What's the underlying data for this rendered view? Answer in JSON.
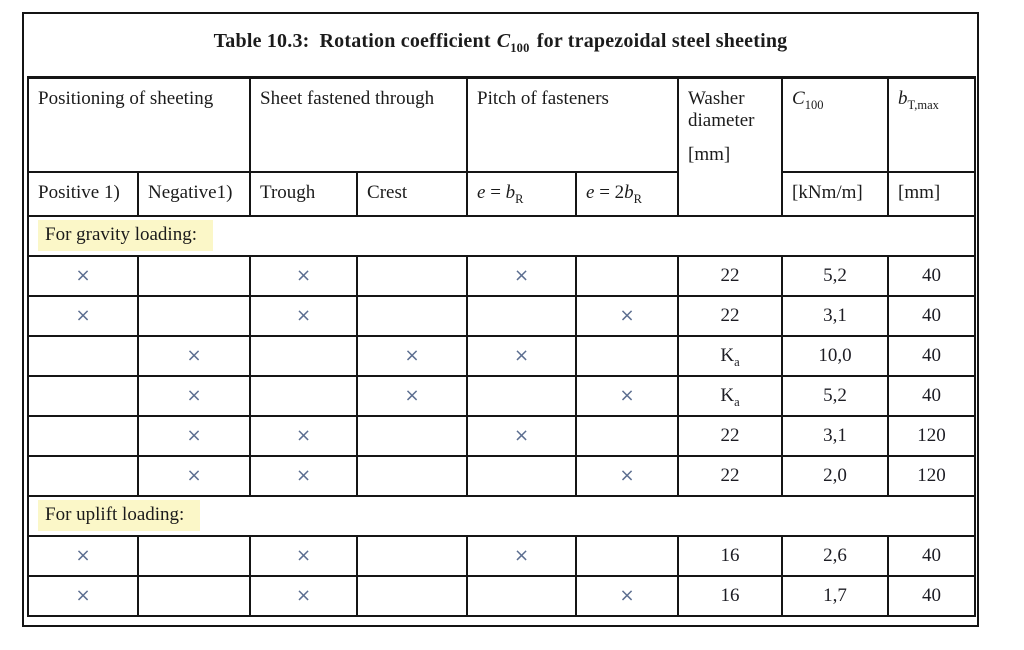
{
  "title": {
    "part1": "Table 10.3:",
    "part2": "Rotation coefficient",
    "symbol_base": "C",
    "symbol_sub": "100",
    "part3": "for trapezoidal steel sheeting"
  },
  "header": {
    "group_positioning": "Positioning of sheeting",
    "group_fastened": "Sheet fastened through",
    "group_pitch": "Pitch of fasteners",
    "washer_line1": "Washer",
    "washer_line2": "diameter",
    "washer_unit": "[mm]",
    "c100_base": "C",
    "c100_sub": "100",
    "c100_unit": "[kNm/m]",
    "btmax_base": "b",
    "btmax_sub": "T,max",
    "btmax_unit": "[mm]",
    "positive": "Positive 1)",
    "negative": "Negative1)",
    "trough": "Trough",
    "crest": "Crest",
    "pitch1": {
      "var": "e",
      "eq": " = ",
      "coef": "",
      "base": "b",
      "sub": "R"
    },
    "pitch2": {
      "var": "e",
      "eq": " = ",
      "coef": "2",
      "base": "b",
      "sub": "R"
    }
  },
  "table": {
    "mark_symbol": "×",
    "sections": [
      {
        "label": "For gravity loading:",
        "rows": [
          {
            "marks": [
              "×",
              "",
              "×",
              "",
              "×",
              ""
            ],
            "washer_base": "22",
            "washer_sub": "",
            "c100": "5,2",
            "btmax": "40"
          },
          {
            "marks": [
              "×",
              "",
              "×",
              "",
              "",
              "×"
            ],
            "washer_base": "22",
            "washer_sub": "",
            "c100": "3,1",
            "btmax": "40"
          },
          {
            "marks": [
              "",
              "×",
              "",
              "×",
              "×",
              ""
            ],
            "washer_base": "K",
            "washer_sub": "a",
            "c100": "10,0",
            "btmax": "40"
          },
          {
            "marks": [
              "",
              "×",
              "",
              "×",
              "",
              "×"
            ],
            "washer_base": "K",
            "washer_sub": "a",
            "c100": "5,2",
            "btmax": "40"
          },
          {
            "marks": [
              "",
              "×",
              "×",
              "",
              "×",
              ""
            ],
            "washer_base": "22",
            "washer_sub": "",
            "c100": "3,1",
            "btmax": "120"
          },
          {
            "marks": [
              "",
              "×",
              "×",
              "",
              "",
              "×"
            ],
            "washer_base": "22",
            "washer_sub": "",
            "c100": "2,0",
            "btmax": "120"
          }
        ]
      },
      {
        "label": "For uplift loading:",
        "rows": [
          {
            "marks": [
              "×",
              "",
              "×",
              "",
              "×",
              ""
            ],
            "washer_base": "16",
            "washer_sub": "",
            "c100": "2,6",
            "btmax": "40"
          },
          {
            "marks": [
              "×",
              "",
              "×",
              "",
              "",
              "×"
            ],
            "washer_base": "16",
            "washer_sub": "",
            "c100": "1,7",
            "btmax": "40"
          }
        ]
      }
    ]
  },
  "colors": {
    "highlight_yellow": "#fbf7c8",
    "mark_blue_gray": "#5c6e90",
    "border_black": "#151515"
  }
}
